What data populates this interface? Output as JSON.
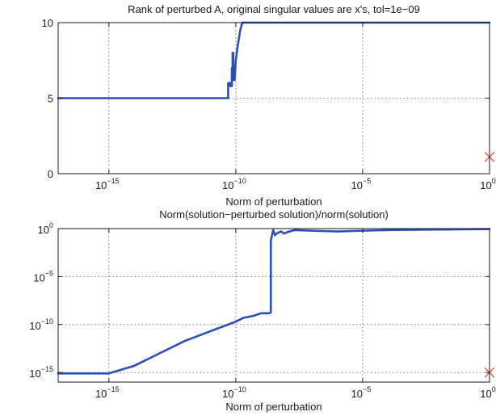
{
  "colors": {
    "line": "#2a4fb8",
    "marker": "#e0604e",
    "grid": "#555555",
    "axis": "#1a1a1a"
  },
  "chart_data": [
    {
      "type": "line",
      "title": "Rank of perturbed A, original singular values are x's, tol=1e−09",
      "xlabel": "Norm of perturbation",
      "ylabel": "",
      "xscale": "log",
      "yscale": "linear",
      "xlim": [
        1e-17,
        1
      ],
      "ylim": [
        0,
        10
      ],
      "grid": true,
      "xticks": [
        {
          "value": 1e-15,
          "base": "10",
          "exp": "−15"
        },
        {
          "value": 1e-10,
          "base": "10",
          "exp": "−10"
        },
        {
          "value": 1e-05,
          "base": "10",
          "exp": "−5"
        },
        {
          "value": 1,
          "base": "10",
          "exp": "0"
        }
      ],
      "yticks": [
        {
          "value": 0,
          "label": "0"
        },
        {
          "value": 5,
          "label": "5"
        },
        {
          "value": 10,
          "label": "10"
        }
      ],
      "series": [
        {
          "x": [
            1e-17,
            1e-15,
            1e-13,
            1e-11,
            5e-11,
            5e-11,
            6e-11,
            6e-11,
            7e-11,
            7e-11,
            7.5e-11,
            7.5e-11,
            8e-11,
            8e-11,
            9e-11,
            1e-10,
            1.2e-10,
            1.5e-10,
            1.8e-10,
            2e-10,
            1e-07,
            0.0001,
            0.01,
            1
          ],
          "y": [
            5,
            5,
            5,
            5,
            5,
            6,
            6,
            5.8,
            5.8,
            7,
            7,
            8,
            8,
            6.2,
            6.2,
            7.5,
            8.5,
            9.5,
            10,
            10,
            10,
            10,
            10,
            10
          ]
        }
      ],
      "markers": [
        {
          "x": 1,
          "y": 1.1,
          "symbol": "x"
        }
      ]
    },
    {
      "type": "line",
      "title": "Norm(solution−perturbed solution)/norm(solution)",
      "xlabel": "Norm of perturbation",
      "ylabel": "",
      "xscale": "log",
      "yscale": "log",
      "xlim": [
        1e-17,
        1
      ],
      "ylim": [
        1e-16,
        1
      ],
      "grid": true,
      "xticks": [
        {
          "value": 1e-15,
          "base": "10",
          "exp": "−15"
        },
        {
          "value": 1e-10,
          "base": "10",
          "exp": "−10"
        },
        {
          "value": 1e-05,
          "base": "10",
          "exp": "−5"
        },
        {
          "value": 1,
          "base": "10",
          "exp": "0"
        }
      ],
      "yticks": [
        {
          "value": 1e-15,
          "base": "10",
          "exp": "−15"
        },
        {
          "value": 1e-10,
          "base": "10",
          "exp": "−10"
        },
        {
          "value": 1e-05,
          "base": "10",
          "exp": "−5"
        },
        {
          "value": 1,
          "base": "10",
          "exp": "0"
        }
      ],
      "series": [
        {
          "x": [
            1e-17,
            1e-16,
            1e-15,
            1e-14,
            1e-13,
            1e-12,
            1e-11,
            5e-11,
            1e-10,
            2e-10,
            5e-10,
            1e-09,
            2e-09,
            2.4e-09,
            2.4e-09,
            2.7e-09,
            3e-09,
            3.5e-09,
            4e-09,
            6e-09,
            8e-09,
            1e-08,
            2e-08,
            1e-07,
            1e-06,
            1e-05,
            0.0001,
            0.001,
            0.01,
            0.1,
            1
          ],
          "y": [
            8e-16,
            8e-16,
            8e-16,
            5e-15,
            1e-13,
            2e-12,
            2e-11,
            1e-10,
            2e-10,
            5e-10,
            8e-10,
            1.5e-09,
            1.5e-09,
            1.8e-09,
            0.05,
            0.25,
            0.7,
            0.2,
            0.3,
            0.5,
            0.3,
            0.4,
            0.7,
            0.6,
            0.5,
            0.6,
            0.7,
            0.75,
            0.8,
            0.85,
            0.9
          ]
        }
      ],
      "markers": [
        {
          "x": 1,
          "y": 1e-15,
          "symbol": "x"
        }
      ]
    }
  ]
}
